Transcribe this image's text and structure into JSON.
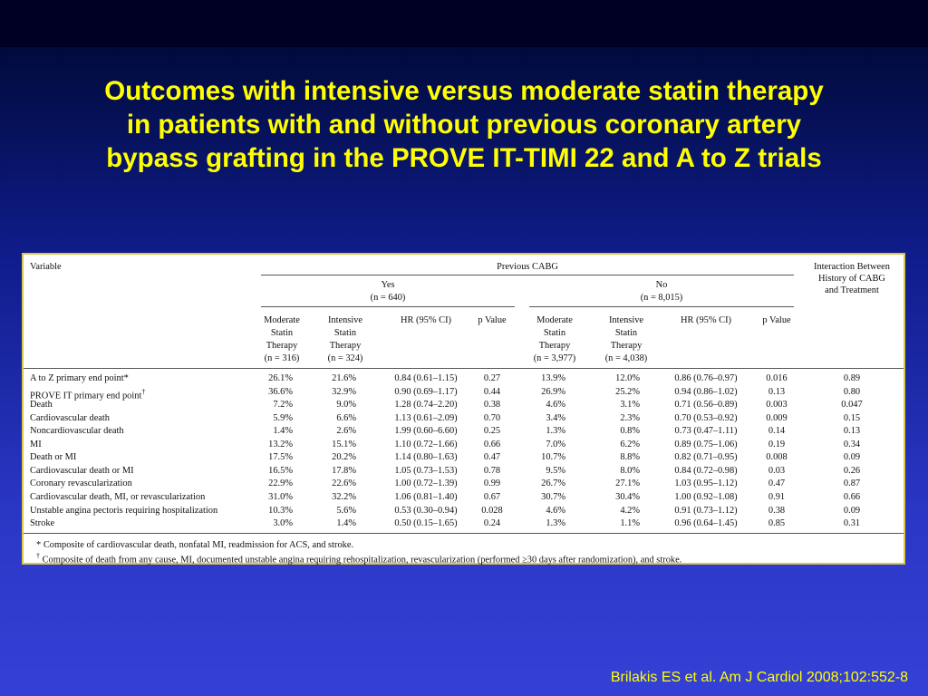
{
  "slide": {
    "title_lines": [
      "Outcomes with intensive versus moderate statin therapy",
      "in patients with and without previous coronary artery",
      "bypass grafting in the PROVE IT-TIMI 22 and A to Z trials"
    ],
    "citation": "Brilakis ES et al. Am J Cardiol 2008;102:552-8"
  },
  "table": {
    "variable_header": "Variable",
    "group_header": "Previous CABG",
    "interaction_header": [
      "Interaction Between",
      "History of CABG",
      "and Treatment"
    ],
    "yes_group": {
      "label": "Yes",
      "n": "(n = 640)"
    },
    "no_group": {
      "label": "No",
      "n": "(n = 8,015)"
    },
    "subheaders": {
      "moderate": [
        "Moderate",
        "Statin",
        "Therapy"
      ],
      "intensive": [
        "Intensive",
        "Statin",
        "Therapy"
      ],
      "hr": "HR (95% CI)",
      "p": "p Value",
      "yes_mod_n": "(n = 316)",
      "yes_int_n": "(n = 324)",
      "no_mod_n": "(n = 3,977)",
      "no_int_n": "(n = 4,038)"
    },
    "rows": [
      {
        "variable": "A to Z primary end point*",
        "sup": "",
        "yes_mod": "26.1%",
        "yes_int": "21.6%",
        "yes_hr": "0.84 (0.61–1.15)",
        "yes_p": "0.27",
        "no_mod": "13.9%",
        "no_int": "12.0%",
        "no_hr": "0.86 (0.76–0.97)",
        "no_p": "0.016",
        "interaction": "0.89"
      },
      {
        "variable": "PROVE IT primary end point",
        "sup": "†",
        "yes_mod": "36.6%",
        "yes_int": "32.9%",
        "yes_hr": "0.90 (0.69–1.17)",
        "yes_p": "0.44",
        "no_mod": "26.9%",
        "no_int": "25.2%",
        "no_hr": "0.94 (0.86–1.02)",
        "no_p": "0.13",
        "interaction": "0.80"
      },
      {
        "variable": "Death",
        "sup": "",
        "yes_mod": "7.2%",
        "yes_int": "9.0%",
        "yes_hr": "1.28 (0.74–2.20)",
        "yes_p": "0.38",
        "no_mod": "4.6%",
        "no_int": "3.1%",
        "no_hr": "0.71 (0.56–0.89)",
        "no_p": "0.003",
        "interaction": "0.047"
      },
      {
        "variable": "Cardiovascular death",
        "sup": "",
        "yes_mod": "5.9%",
        "yes_int": "6.6%",
        "yes_hr": "1.13 (0.61–2.09)",
        "yes_p": "0.70",
        "no_mod": "3.4%",
        "no_int": "2.3%",
        "no_hr": "0.70 (0.53–0.92)",
        "no_p": "0.009",
        "interaction": "0.15"
      },
      {
        "variable": "Noncardiovascular death",
        "sup": "",
        "yes_mod": "1.4%",
        "yes_int": "2.6%",
        "yes_hr": "1.99 (0.60–6.60)",
        "yes_p": "0.25",
        "no_mod": "1.3%",
        "no_int": "0.8%",
        "no_hr": "0.73 (0.47–1.11)",
        "no_p": "0.14",
        "interaction": "0.13"
      },
      {
        "variable": "MI",
        "sup": "",
        "yes_mod": "13.2%",
        "yes_int": "15.1%",
        "yes_hr": "1.10 (0.72–1.66)",
        "yes_p": "0.66",
        "no_mod": "7.0%",
        "no_int": "6.2%",
        "no_hr": "0.89 (0.75–1.06)",
        "no_p": "0.19",
        "interaction": "0.34"
      },
      {
        "variable": "Death or MI",
        "sup": "",
        "yes_mod": "17.5%",
        "yes_int": "20.2%",
        "yes_hr": "1.14 (0.80–1.63)",
        "yes_p": "0.47",
        "no_mod": "10.7%",
        "no_int": "8.8%",
        "no_hr": "0.82 (0.71–0.95)",
        "no_p": "0.008",
        "interaction": "0.09"
      },
      {
        "variable": "Cardiovascular death or MI",
        "sup": "",
        "yes_mod": "16.5%",
        "yes_int": "17.8%",
        "yes_hr": "1.05 (0.73–1.53)",
        "yes_p": "0.78",
        "no_mod": "9.5%",
        "no_int": "8.0%",
        "no_hr": "0.84 (0.72–0.98)",
        "no_p": "0.03",
        "interaction": "0.26"
      },
      {
        "variable": "Coronary revascularization",
        "sup": "",
        "yes_mod": "22.9%",
        "yes_int": "22.6%",
        "yes_hr": "1.00 (0.72–1.39)",
        "yes_p": "0.99",
        "no_mod": "26.7%",
        "no_int": "27.1%",
        "no_hr": "1.03 (0.95–1.12)",
        "no_p": "0.47",
        "interaction": "0.87"
      },
      {
        "variable": "Cardiovascular death, MI, or revascularization",
        "sup": "",
        "yes_mod": "31.0%",
        "yes_int": "32.2%",
        "yes_hr": "1.06 (0.81–1.40)",
        "yes_p": "0.67",
        "no_mod": "30.7%",
        "no_int": "30.4%",
        "no_hr": "1.00 (0.92–1.08)",
        "no_p": "0.91",
        "interaction": "0.66"
      },
      {
        "variable": "Unstable angina pectoris requiring hospitalization",
        "sup": "",
        "yes_mod": "10.3%",
        "yes_int": "5.6%",
        "yes_hr": "0.53 (0.30–0.94)",
        "yes_p": "0.028",
        "no_mod": "4.6%",
        "no_int": "4.2%",
        "no_hr": "0.91 (0.73–1.12)",
        "no_p": "0.38",
        "interaction": "0.09"
      },
      {
        "variable": "Stroke",
        "sup": "",
        "yes_mod": "3.0%",
        "yes_int": "1.4%",
        "yes_hr": "0.50 (0.15–1.65)",
        "yes_p": "0.24",
        "no_mod": "1.3%",
        "no_int": "1.1%",
        "no_hr": "0.96 (0.64–1.45)",
        "no_p": "0.85",
        "interaction": "0.31"
      }
    ],
    "footnotes": [
      {
        "mark": "*",
        "text": "Composite of cardiovascular death, nonfatal MI, readmission for ACS, and stroke."
      },
      {
        "mark": "†",
        "text": "Composite of death from any cause, MI, documented unstable angina requiring rehospitalization, revascularization (performed ≥30 days after randomization), and stroke."
      }
    ]
  }
}
